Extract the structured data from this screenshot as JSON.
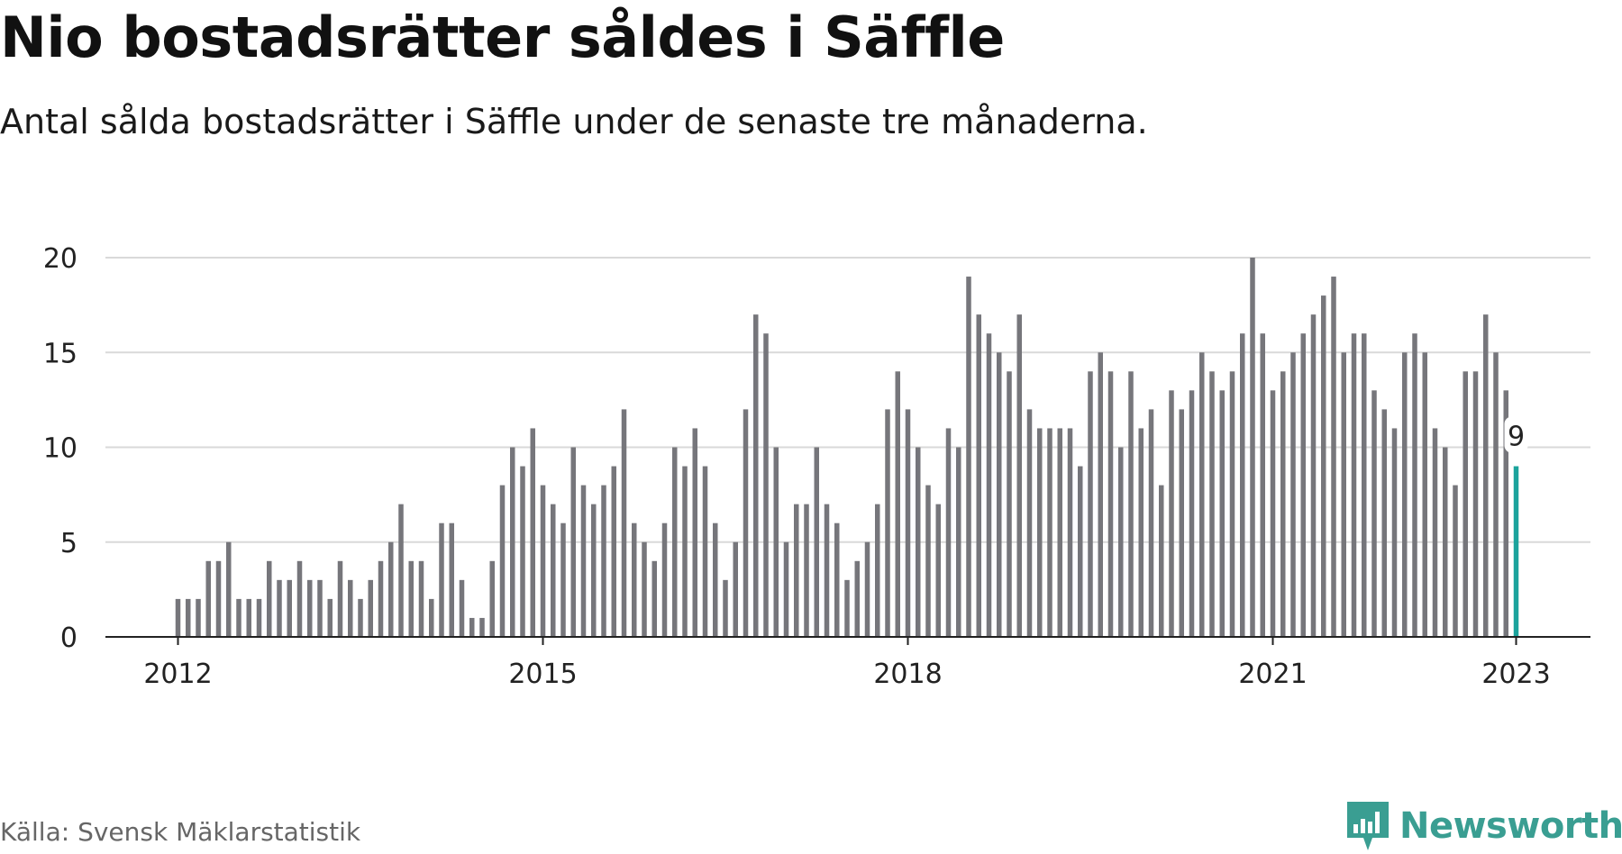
{
  "title": "Nio bostadsrätter såldes i Säffle",
  "subtitle": "Antal sålda bostadsrätter i Säffle under de senaste tre månaderna.",
  "source": "Källa: Svensk Mäklarstatistik",
  "brand": {
    "name": "Newsworthy",
    "icon": "newsworthy-logo-icon",
    "color": "#3a9e92"
  },
  "colors": {
    "bar": "#76767b",
    "highlight": "#1ba39c",
    "grid": "#d9d9d9",
    "axis": "#222222"
  },
  "chart_data": {
    "type": "bar",
    "x_start": "2012-01",
    "x_step": "month",
    "xticks": [
      {
        "label": "2012",
        "index": 0
      },
      {
        "label": "2015",
        "index": 36
      },
      {
        "label": "2018",
        "index": 72
      },
      {
        "label": "2021",
        "index": 108
      },
      {
        "label": "2023",
        "index": 132
      }
    ],
    "ylim": [
      0,
      20
    ],
    "yticks": [
      0,
      5,
      10,
      15,
      20
    ],
    "values": [
      2,
      2,
      2,
      4,
      4,
      5,
      2,
      2,
      2,
      4,
      3,
      3,
      4,
      3,
      3,
      2,
      4,
      3,
      2,
      3,
      4,
      5,
      7,
      4,
      4,
      2,
      6,
      6,
      3,
      1,
      1,
      4,
      8,
      10,
      9,
      11,
      8,
      7,
      6,
      10,
      8,
      7,
      8,
      9,
      12,
      6,
      5,
      4,
      6,
      10,
      9,
      11,
      9,
      6,
      3,
      5,
      12,
      17,
      16,
      10,
      5,
      7,
      7,
      10,
      7,
      6,
      3,
      4,
      5,
      7,
      12,
      14,
      12,
      10,
      8,
      7,
      11,
      10,
      19,
      17,
      16,
      15,
      14,
      17,
      12,
      11,
      11,
      11,
      11,
      9,
      14,
      15,
      14,
      10,
      14,
      11,
      12,
      8,
      13,
      12,
      13,
      15,
      14,
      13,
      14,
      16,
      20,
      16,
      13,
      14,
      15,
      16,
      17,
      18,
      19,
      15,
      16,
      16,
      13,
      12,
      11,
      15,
      16,
      15,
      11,
      10,
      8,
      14,
      14,
      17,
      15,
      13,
      9
    ],
    "highlight_index": 132,
    "highlight_label": "9",
    "grid": true
  }
}
